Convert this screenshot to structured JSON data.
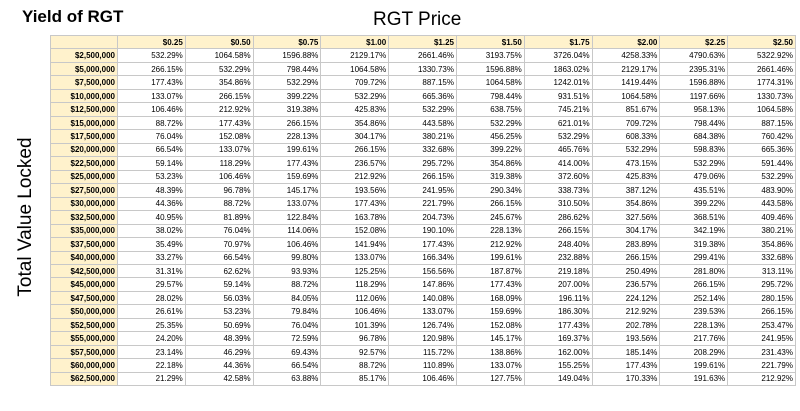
{
  "title": "Yield of RGT",
  "column_axis_label": "RGT Price",
  "row_axis_label": "Total Value Locked",
  "table": {
    "columns": [
      "$0.25",
      "$0.50",
      "$0.75",
      "$1.00",
      "$1.25",
      "$1.50",
      "$1.75",
      "$2.00",
      "$2.25",
      "$2.50"
    ],
    "rows": [
      {
        "tvl": "$2,500,000",
        "values": [
          "532.29%",
          "1064.58%",
          "1596.88%",
          "2129.17%",
          "2661.46%",
          "3193.75%",
          "3726.04%",
          "4258.33%",
          "4790.63%",
          "5322.92%"
        ]
      },
      {
        "tvl": "$5,000,000",
        "values": [
          "266.15%",
          "532.29%",
          "798.44%",
          "1064.58%",
          "1330.73%",
          "1596.88%",
          "1863.02%",
          "2129.17%",
          "2395.31%",
          "2661.46%"
        ]
      },
      {
        "tvl": "$7,500,000",
        "values": [
          "177.43%",
          "354.86%",
          "532.29%",
          "709.72%",
          "887.15%",
          "1064.58%",
          "1242.01%",
          "1419.44%",
          "1596.88%",
          "1774.31%"
        ]
      },
      {
        "tvl": "$10,000,000",
        "values": [
          "133.07%",
          "266.15%",
          "399.22%",
          "532.29%",
          "665.36%",
          "798.44%",
          "931.51%",
          "1064.58%",
          "1197.66%",
          "1330.73%"
        ]
      },
      {
        "tvl": "$12,500,000",
        "values": [
          "106.46%",
          "212.92%",
          "319.38%",
          "425.83%",
          "532.29%",
          "638.75%",
          "745.21%",
          "851.67%",
          "958.13%",
          "1064.58%"
        ]
      },
      {
        "tvl": "$15,000,000",
        "values": [
          "88.72%",
          "177.43%",
          "266.15%",
          "354.86%",
          "443.58%",
          "532.29%",
          "621.01%",
          "709.72%",
          "798.44%",
          "887.15%"
        ]
      },
      {
        "tvl": "$17,500,000",
        "values": [
          "76.04%",
          "152.08%",
          "228.13%",
          "304.17%",
          "380.21%",
          "456.25%",
          "532.29%",
          "608.33%",
          "684.38%",
          "760.42%"
        ]
      },
      {
        "tvl": "$20,000,000",
        "values": [
          "66.54%",
          "133.07%",
          "199.61%",
          "266.15%",
          "332.68%",
          "399.22%",
          "465.76%",
          "532.29%",
          "598.83%",
          "665.36%"
        ]
      },
      {
        "tvl": "$22,500,000",
        "values": [
          "59.14%",
          "118.29%",
          "177.43%",
          "236.57%",
          "295.72%",
          "354.86%",
          "414.00%",
          "473.15%",
          "532.29%",
          "591.44%"
        ]
      },
      {
        "tvl": "$25,000,000",
        "values": [
          "53.23%",
          "106.46%",
          "159.69%",
          "212.92%",
          "266.15%",
          "319.38%",
          "372.60%",
          "425.83%",
          "479.06%",
          "532.29%"
        ]
      },
      {
        "tvl": "$27,500,000",
        "values": [
          "48.39%",
          "96.78%",
          "145.17%",
          "193.56%",
          "241.95%",
          "290.34%",
          "338.73%",
          "387.12%",
          "435.51%",
          "483.90%"
        ]
      },
      {
        "tvl": "$30,000,000",
        "values": [
          "44.36%",
          "88.72%",
          "133.07%",
          "177.43%",
          "221.79%",
          "266.15%",
          "310.50%",
          "354.86%",
          "399.22%",
          "443.58%"
        ]
      },
      {
        "tvl": "$32,500,000",
        "values": [
          "40.95%",
          "81.89%",
          "122.84%",
          "163.78%",
          "204.73%",
          "245.67%",
          "286.62%",
          "327.56%",
          "368.51%",
          "409.46%"
        ]
      },
      {
        "tvl": "$35,000,000",
        "values": [
          "38.02%",
          "76.04%",
          "114.06%",
          "152.08%",
          "190.10%",
          "228.13%",
          "266.15%",
          "304.17%",
          "342.19%",
          "380.21%"
        ]
      },
      {
        "tvl": "$37,500,000",
        "values": [
          "35.49%",
          "70.97%",
          "106.46%",
          "141.94%",
          "177.43%",
          "212.92%",
          "248.40%",
          "283.89%",
          "319.38%",
          "354.86%"
        ]
      },
      {
        "tvl": "$40,000,000",
        "values": [
          "33.27%",
          "66.54%",
          "99.80%",
          "133.07%",
          "166.34%",
          "199.61%",
          "232.88%",
          "266.15%",
          "299.41%",
          "332.68%"
        ]
      },
      {
        "tvl": "$42,500,000",
        "values": [
          "31.31%",
          "62.62%",
          "93.93%",
          "125.25%",
          "156.56%",
          "187.87%",
          "219.18%",
          "250.49%",
          "281.80%",
          "313.11%"
        ]
      },
      {
        "tvl": "$45,000,000",
        "values": [
          "29.57%",
          "59.14%",
          "88.72%",
          "118.29%",
          "147.86%",
          "177.43%",
          "207.00%",
          "236.57%",
          "266.15%",
          "295.72%"
        ]
      },
      {
        "tvl": "$47,500,000",
        "values": [
          "28.02%",
          "56.03%",
          "84.05%",
          "112.06%",
          "140.08%",
          "168.09%",
          "196.11%",
          "224.12%",
          "252.14%",
          "280.15%"
        ]
      },
      {
        "tvl": "$50,000,000",
        "values": [
          "26.61%",
          "53.23%",
          "79.84%",
          "106.46%",
          "133.07%",
          "159.69%",
          "186.30%",
          "212.92%",
          "239.53%",
          "266.15%"
        ]
      },
      {
        "tvl": "$52,500,000",
        "values": [
          "25.35%",
          "50.69%",
          "76.04%",
          "101.39%",
          "126.74%",
          "152.08%",
          "177.43%",
          "202.78%",
          "228.13%",
          "253.47%"
        ]
      },
      {
        "tvl": "$55,000,000",
        "values": [
          "24.20%",
          "48.39%",
          "72.59%",
          "96.78%",
          "120.98%",
          "145.17%",
          "169.37%",
          "193.56%",
          "217.76%",
          "241.95%"
        ]
      },
      {
        "tvl": "$57,500,000",
        "values": [
          "23.14%",
          "46.29%",
          "69.43%",
          "92.57%",
          "115.72%",
          "138.86%",
          "162.00%",
          "185.14%",
          "208.29%",
          "231.43%"
        ]
      },
      {
        "tvl": "$60,000,000",
        "values": [
          "22.18%",
          "44.36%",
          "66.54%",
          "88.72%",
          "110.89%",
          "133.07%",
          "155.25%",
          "177.43%",
          "199.61%",
          "221.79%"
        ]
      },
      {
        "tvl": "$62,500,000",
        "values": [
          "21.29%",
          "42.58%",
          "63.88%",
          "85.17%",
          "106.46%",
          "127.75%",
          "149.04%",
          "170.33%",
          "191.63%",
          "212.92%"
        ]
      }
    ]
  },
  "colors": {
    "header_fill": "#fff2cc",
    "grid_line": "#c8c8c8",
    "watermark": "#3a7bd5"
  }
}
